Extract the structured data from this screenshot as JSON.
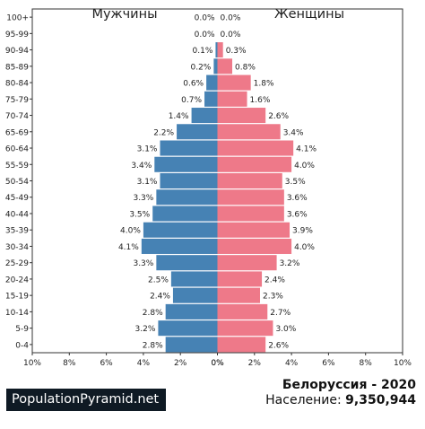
{
  "chart_data": {
    "type": "bar",
    "orientation": "horizontal",
    "layout": "population-pyramid",
    "categories": [
      "0-4",
      "5-9",
      "10-14",
      "15-19",
      "20-24",
      "25-29",
      "30-34",
      "35-39",
      "40-44",
      "45-49",
      "50-54",
      "55-59",
      "60-64",
      "65-69",
      "70-74",
      "75-79",
      "80-84",
      "85-89",
      "90-94",
      "95-99",
      "100+"
    ],
    "series": [
      {
        "name": "Мужчины",
        "side": "left",
        "color": "#4682b4",
        "values": [
          2.8,
          3.2,
          2.8,
          2.4,
          2.5,
          3.3,
          4.1,
          4.0,
          3.5,
          3.3,
          3.1,
          3.4,
          3.1,
          2.2,
          1.4,
          0.7,
          0.6,
          0.2,
          0.1,
          0.0,
          0.0
        ]
      },
      {
        "name": "Женщины",
        "side": "right",
        "color": "#ee7989",
        "values": [
          2.6,
          3.0,
          2.7,
          2.3,
          2.4,
          3.2,
          4.0,
          3.9,
          3.6,
          3.6,
          3.5,
          4.0,
          4.1,
          3.4,
          2.6,
          1.6,
          1.8,
          0.8,
          0.3,
          0.0,
          0.0
        ]
      }
    ],
    "x_ticks": [
      "10%",
      "8%",
      "6%",
      "4%",
      "2%",
      "0%",
      "0%",
      "2%",
      "4%",
      "6%",
      "8%",
      "10%"
    ],
    "xlim": [
      0,
      10
    ],
    "grid": false
  },
  "footer": {
    "brand": "PopulationPyramid.net",
    "country_year": "Белоруссия - 2020",
    "population_label": "Население:",
    "population_value": "9,350,944"
  }
}
